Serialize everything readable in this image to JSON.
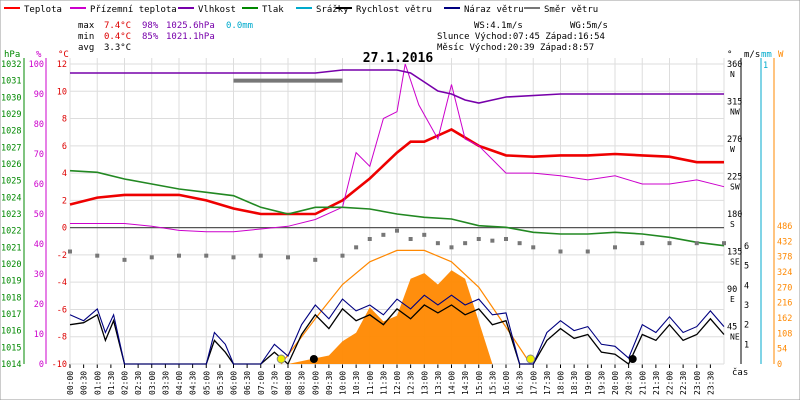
{
  "chart_data": {
    "type": "line",
    "title": "27.1.2016",
    "legend": [
      {
        "name": "Teplota",
        "color": "#ff0000"
      },
      {
        "name": "Přízemní teplota",
        "color": "#cc00cc"
      },
      {
        "name": "Vlhkost",
        "color": "#7700aa"
      },
      {
        "name": "Tlak",
        "color": "#008800"
      },
      {
        "name": "Srážky",
        "color": "#00aacc"
      },
      {
        "name": "Rychlost větru",
        "color": "#000000"
      },
      {
        "name": "Náraz větru",
        "color": "#000080"
      },
      {
        "name": "Směr větru",
        "color": "#777777"
      }
    ],
    "stats": {
      "max_label": "max",
      "max_temp": "7.4°C",
      "max_hum": "98%",
      "max_press": "1025.6hPa",
      "max_rain": "0.0mm",
      "min_label": "min",
      "min_temp": "0.4°C",
      "min_hum": "85%",
      "min_press": "1021.1hPa",
      "avg_label": "avg",
      "avg_temp": "3.3°C"
    },
    "info": {
      "ws": "WS:4.1m/s",
      "wg": "WG:5m/s",
      "sun": "Slunce Východ:07:45  Západ:16:54",
      "moon": "Měsíc  Východ:20:39  Západ:8:57"
    },
    "left_axis_hpa": {
      "label": "hPa",
      "ticks": [
        "1032",
        "1031",
        "1030",
        "1029",
        "1028",
        "1027",
        "1026",
        "1025",
        "1024",
        "1023",
        "1022",
        "1021",
        "1020",
        "1019",
        "1018",
        "1017",
        "1016",
        "1015",
        "1014"
      ]
    },
    "left_axis_pct": {
      "label": "%",
      "ticks": [
        "100",
        "90",
        "80",
        "70",
        "60",
        "50",
        "40",
        "30",
        "20",
        "10",
        "0"
      ]
    },
    "left_axis_temp": {
      "label": "°C",
      "ticks": [
        "12",
        "10",
        "8",
        "6",
        "4",
        "2",
        "0",
        "-2",
        "-4",
        "-6",
        "-8",
        "-10"
      ]
    },
    "right_axis_dir": {
      "label": "°",
      "ticks": [
        "360",
        "315",
        "270",
        "225",
        "180",
        "135",
        "90",
        "45"
      ],
      "compass": [
        "N",
        "NW",
        "W",
        "SW",
        "S",
        "SE",
        "E",
        "NE"
      ]
    },
    "right_axis_ms": {
      "label": "m/s",
      "ticks": [
        "6",
        "5",
        "4",
        "3",
        "2",
        "1"
      ]
    },
    "right_axis_mm": {
      "label": "mm",
      "ticks": [
        "1"
      ]
    },
    "right_axis_w": {
      "label": "W",
      "ticks": [
        "486",
        "432",
        "378",
        "324",
        "270",
        "216",
        "162",
        "108",
        "54",
        "0"
      ]
    },
    "xlabel": "čas",
    "x_ticks": [
      "00:00",
      "00:30",
      "01:00",
      "01:30",
      "02:00",
      "02:30",
      "03:00",
      "03:30",
      "04:00",
      "04:30",
      "05:00",
      "05:30",
      "06:00",
      "06:30",
      "07:00",
      "07:30",
      "08:00",
      "08:30",
      "09:00",
      "09:30",
      "10:00",
      "10:30",
      "11:00",
      "11:30",
      "12:00",
      "12:30",
      "13:00",
      "13:30",
      "14:00",
      "14:30",
      "15:00",
      "15:30",
      "16:00",
      "16:30",
      "17:00",
      "17:30",
      "18:00",
      "18:30",
      "19:00",
      "19:30",
      "20:00",
      "20:30",
      "21:00",
      "21:30",
      "22:00",
      "22:30",
      "23:00",
      "23:30"
    ],
    "series": [
      {
        "name": "Teplota",
        "unit": "°C",
        "x_hours": [
          0,
          1,
          2,
          3,
          4,
          5,
          6,
          7,
          8,
          9,
          10,
          11,
          12,
          12.5,
          13,
          14,
          15,
          16,
          17,
          18,
          19,
          20,
          21,
          22,
          23,
          24
        ],
        "values": [
          1.7,
          2.2,
          2.4,
          2.4,
          2.4,
          2.0,
          1.4,
          1.0,
          1.0,
          1.0,
          2.0,
          3.6,
          5.5,
          6.3,
          6.3,
          7.2,
          6.0,
          5.3,
          5.2,
          5.3,
          5.3,
          5.4,
          5.3,
          5.2,
          4.8,
          4.8
        ]
      },
      {
        "name": "Přízemní teplota",
        "unit": "°C",
        "x_hours": [
          0,
          1,
          2,
          3,
          4,
          5,
          6,
          7,
          8,
          9,
          10,
          10.5,
          11,
          11.5,
          12,
          12.3,
          12.8,
          13.5,
          14,
          14.5,
          15,
          16,
          17,
          18,
          19,
          20,
          21,
          22,
          23,
          24
        ],
        "values": [
          0.3,
          0.3,
          0.3,
          0.1,
          -0.2,
          -0.3,
          -0.3,
          -0.1,
          0.1,
          0.6,
          1.5,
          5.5,
          4.5,
          8.0,
          8.5,
          12.0,
          9.0,
          6.5,
          10.5,
          6.5,
          6.0,
          4.0,
          4.0,
          3.8,
          3.5,
          3.8,
          3.2,
          3.2,
          3.5,
          3.0
        ]
      },
      {
        "name": "Vlhkost",
        "unit": "%",
        "x_hours": [
          0,
          2,
          4,
          6,
          8,
          9,
          10,
          11,
          12,
          12.5,
          13,
          13.5,
          14,
          14.5,
          15,
          15.5,
          16,
          18,
          20,
          22,
          24
        ],
        "values": [
          97,
          97,
          97,
          97,
          97,
          97,
          98,
          98,
          98,
          97,
          94,
          91,
          90,
          88,
          87,
          88,
          89,
          90,
          90,
          90,
          90
        ]
      },
      {
        "name": "Tlak",
        "unit": "hPa",
        "x_hours": [
          0,
          1,
          2,
          3,
          4,
          5,
          6,
          7,
          8,
          9,
          10,
          11,
          12,
          13,
          14,
          15,
          16,
          17,
          18,
          19,
          20,
          21,
          22,
          23,
          24
        ],
        "values": [
          1025.6,
          1025.5,
          1025.1,
          1024.8,
          1024.5,
          1024.3,
          1024.1,
          1023.4,
          1023.0,
          1023.4,
          1023.4,
          1023.3,
          1023.0,
          1022.8,
          1022.7,
          1022.3,
          1022.2,
          1021.9,
          1021.8,
          1021.8,
          1021.9,
          1021.8,
          1021.6,
          1021.3,
          1021.1
        ]
      },
      {
        "name": "Rychlost větru",
        "unit": "m/s",
        "x_hours": [
          0,
          0.5,
          1,
          1.3,
          1.6,
          2,
          2.5,
          3,
          3.5,
          4,
          4.3,
          4.7,
          5,
          5.3,
          5.7,
          6,
          6.5,
          7,
          7.5,
          8,
          8.5,
          9,
          9.5,
          10,
          10.5,
          11,
          11.5,
          12,
          12.5,
          13,
          13.5,
          14,
          14.5,
          15,
          15.5,
          16,
          16.5,
          17,
          17.5,
          18,
          18.5,
          19,
          19.5,
          20,
          20.5,
          21,
          21.5,
          22,
          22.5,
          23,
          23.5,
          24
        ],
        "values": [
          2.0,
          2.1,
          2.5,
          1.2,
          2.2,
          0,
          0,
          0,
          0,
          0,
          0,
          0,
          0,
          1.2,
          0.6,
          0,
          0,
          0,
          0.6,
          0,
          1.5,
          2.5,
          1.8,
          2.8,
          2.2,
          2.5,
          2.0,
          2.8,
          2.3,
          3.0,
          2.6,
          3.0,
          2.5,
          2.8,
          2.0,
          2.2,
          0,
          0,
          1.2,
          1.8,
          1.3,
          1.5,
          0.6,
          0.5,
          0,
          1.5,
          1.2,
          2.0,
          1.2,
          1.5,
          2.3,
          1.5
        ]
      },
      {
        "name": "Náraz větru",
        "unit": "m/s",
        "x_hours": [
          0,
          0.5,
          1,
          1.3,
          1.6,
          2,
          2.5,
          3,
          3.5,
          4,
          4.3,
          4.7,
          5,
          5.3,
          5.7,
          6,
          6.5,
          7,
          7.5,
          8,
          8.5,
          9,
          9.5,
          10,
          10.5,
          11,
          11.5,
          12,
          12.5,
          13,
          13.5,
          14,
          14.5,
          15,
          15.5,
          16,
          16.5,
          17,
          17.5,
          18,
          18.5,
          19,
          19.5,
          20,
          20.5,
          21,
          21.5,
          22,
          22.5,
          23,
          23.5,
          24
        ],
        "values": [
          2.5,
          2.2,
          2.8,
          1.6,
          2.5,
          0,
          0,
          0,
          0,
          0,
          0,
          0,
          0,
          1.6,
          1.0,
          0,
          0,
          0,
          1.0,
          0.4,
          2.0,
          3.0,
          2.3,
          3.3,
          2.7,
          3.0,
          2.5,
          3.3,
          2.8,
          3.5,
          3.0,
          3.5,
          3.0,
          3.3,
          2.5,
          2.6,
          0,
          0,
          1.6,
          2.2,
          1.7,
          1.9,
          1.0,
          0.9,
          0.3,
          2.0,
          1.6,
          2.4,
          1.6,
          1.9,
          2.7,
          1.9
        ]
      },
      {
        "name": "Směr větru",
        "unit": "°",
        "x_hours": [
          0,
          1,
          2,
          3,
          4,
          5,
          6,
          7,
          8,
          9,
          10,
          10.5,
          11,
          11.5,
          12,
          12.5,
          13,
          13.5,
          14,
          14.5,
          15,
          15.5,
          16,
          16.5,
          17,
          18,
          19,
          20,
          21,
          22,
          23,
          24
        ],
        "values": [
          135,
          130,
          125,
          128,
          130,
          130,
          128,
          130,
          128,
          125,
          130,
          140,
          150,
          155,
          160,
          150,
          155,
          145,
          140,
          145,
          150,
          148,
          150,
          145,
          140,
          135,
          135,
          140,
          145,
          145,
          145,
          145
        ]
      }
    ],
    "solar_radiation": {
      "unit": "W",
      "x_hours": [
        8,
        9,
        9.5,
        10,
        10.5,
        11,
        11.5,
        12,
        12.5,
        13,
        13.5,
        14,
        14.5,
        15,
        15.5
      ],
      "values": [
        0,
        20,
        30,
        80,
        110,
        200,
        150,
        170,
        300,
        320,
        280,
        330,
        300,
        150,
        0
      ]
    },
    "theoretical_solar": {
      "x_hours": [
        7.75,
        9,
        10,
        11,
        12,
        13,
        14,
        15,
        16,
        16.9
      ],
      "values": [
        0,
        160,
        280,
        360,
        400,
        400,
        360,
        270,
        130,
        0
      ]
    },
    "markers": {
      "sunrise": "07:45",
      "sunset": "16:54",
      "moonrise": "20:39",
      "moonset": "8:57"
    },
    "pressure_gray_bar": {
      "x_hours": [
        6,
        10
      ],
      "value": 1031
    }
  }
}
